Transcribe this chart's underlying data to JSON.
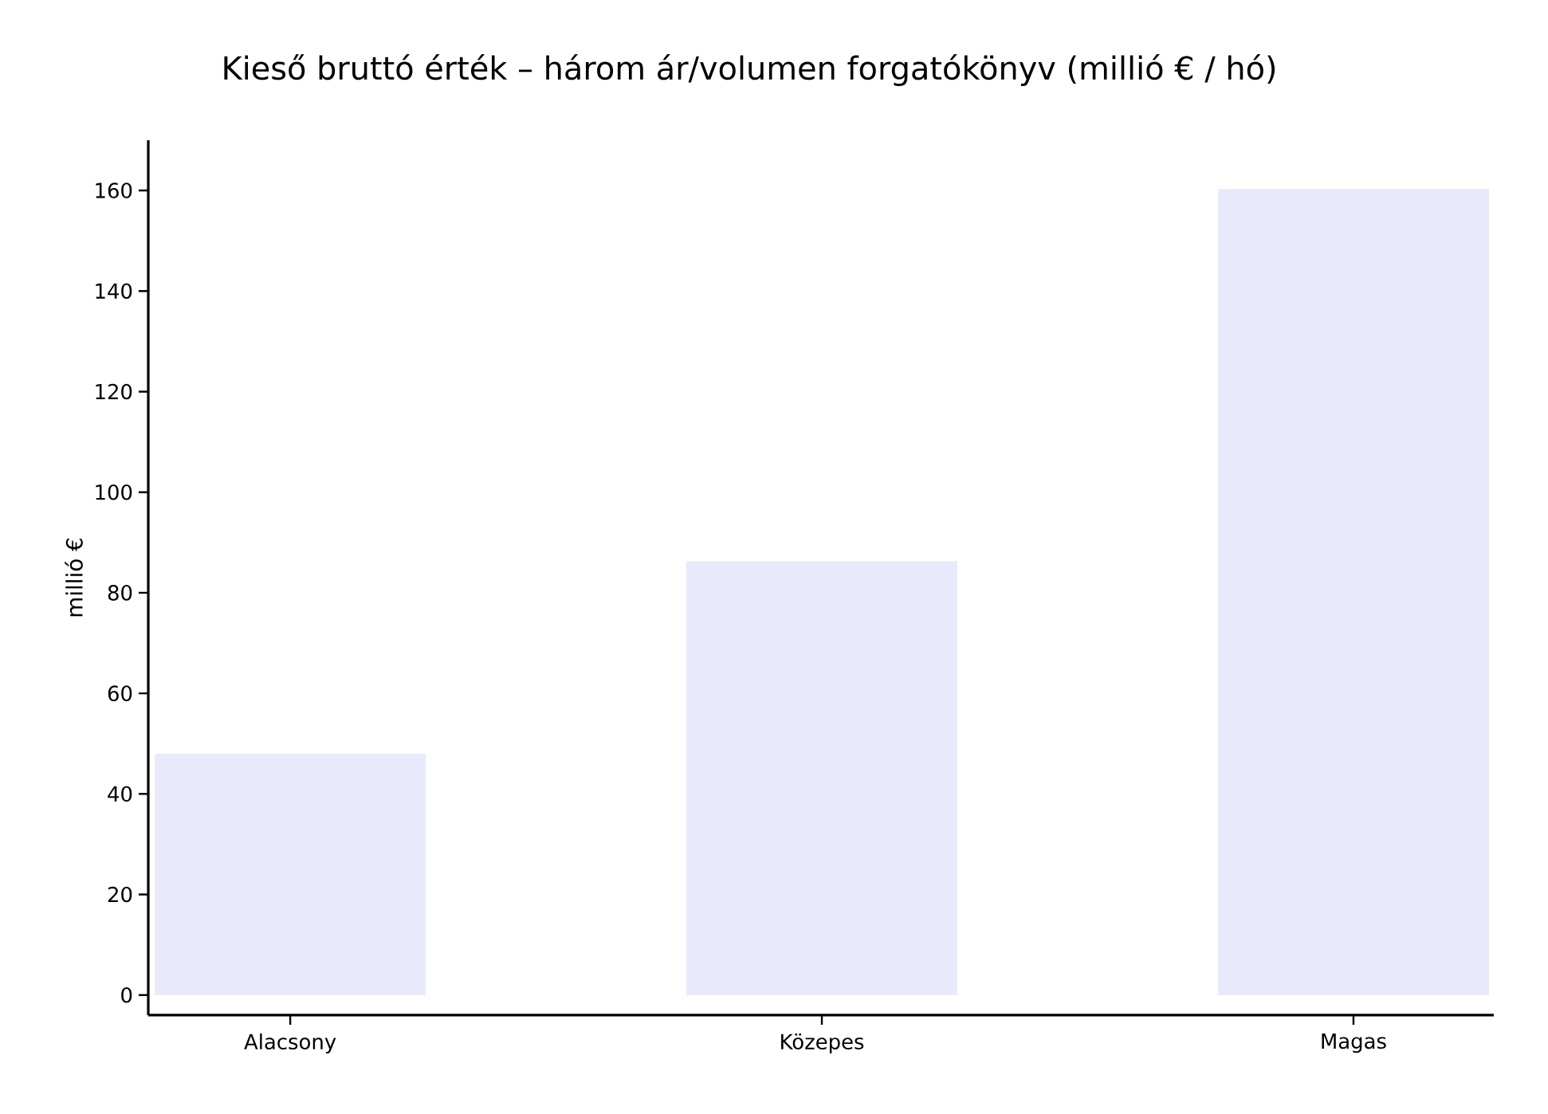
{
  "chart_data": {
    "type": "bar",
    "title": "Kieső bruttó érték – három ár/volumen forgatókönyv (millió € / hó)",
    "ylabel": "millió €",
    "categories": [
      "Alacsony",
      "Közepes",
      "Magas"
    ],
    "values": [
      48,
      86.3,
      160.3
    ],
    "color": "#e8eafc",
    "ylim": [
      -4,
      170
    ],
    "yticks": [
      0,
      20,
      40,
      60,
      80,
      100,
      120,
      140,
      160
    ]
  }
}
